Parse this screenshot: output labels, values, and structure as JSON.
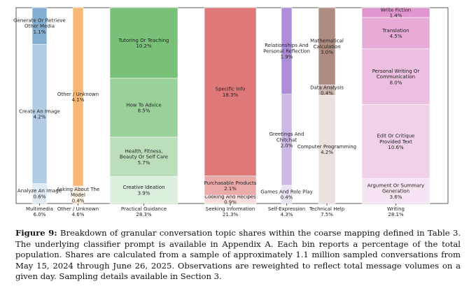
{
  "caption": {
    "label": "Figure 9:",
    "text": "Breakdown of granular conversation topic shares within the coarse mapping defined in Table 3. The underlying classifier prompt is available in Appendix A. Each bin reports a percentage of the total population. Shares are calculated from a sample of approximately 1.1 million sampled conversations from May 15, 2024 through June 26, 2025. Observations are reweighted to reflect total message volumes on a given day. Sampling details available in Section 3."
  },
  "chart_data": {
    "type": "bar",
    "subtype": "stacked-normalized",
    "title": "",
    "xlabel": "",
    "ylabel": "",
    "ylim": [
      0,
      1
    ],
    "categories": [
      {
        "name": "Multimedia",
        "total": "6.0%",
        "color": "#4f8dbf",
        "segments": [
          {
            "label": "Analyze An Image",
            "value": 0.6
          },
          {
            "label": "Create An Image",
            "value": 4.2
          },
          {
            "label": "Generate Or Retrieve Other Media",
            "value": 1.1
          }
        ]
      },
      {
        "name": "Other / Unknown",
        "total": "4.6%",
        "color": "#f39a3d",
        "segments": [
          {
            "label": "Asking About The Model",
            "value": 0.4
          },
          {
            "label": "Other / Unknown",
            "value": 4.1
          }
        ]
      },
      {
        "name": "Practical Guidance",
        "total": "28.3%",
        "color": "#3fa53f",
        "segments": [
          {
            "label": "Creative Ideation",
            "value": 3.9
          },
          {
            "label": "Health, Fitness, Beauty Or Self Care",
            "value": 5.7
          },
          {
            "label": "How To Advice",
            "value": 8.5
          },
          {
            "label": "Tutoring Or Teaching",
            "value": 10.2
          }
        ]
      },
      {
        "name": "Seeking Information",
        "total": "21.3%",
        "color": "#d13f3f",
        "segments": [
          {
            "label": "Cooking And Recipes",
            "value": 0.9
          },
          {
            "label": "Purchasable Products",
            "value": 2.1
          },
          {
            "label": "Specific Info",
            "value": 18.3
          }
        ]
      },
      {
        "name": "Self-Expression",
        "total": "4.3%",
        "color": "#8a5cc4",
        "segments": [
          {
            "label": "Games And Role Play",
            "value": 0.4
          },
          {
            "label": "Greetings And Chitchat",
            "value": 2.0
          },
          {
            "label": "Relationships And Personal Reflection",
            "value": 1.9
          }
        ]
      },
      {
        "name": "Technical Help",
        "total": "7.5%",
        "color": "#8c5a4a",
        "segments": [
          {
            "label": "Computer Programming",
            "value": 4.2
          },
          {
            "label": "Data Analysis",
            "value": 0.4
          },
          {
            "label": "Mathematical Calculation",
            "value": 3.0
          }
        ]
      },
      {
        "name": "Writing",
        "total": "28.1%",
        "color": "#d36bb8",
        "segments": [
          {
            "label": "Argument Or Summary Generation",
            "value": 3.6
          },
          {
            "label": "Edit Or Critique Provided Text",
            "value": 10.6
          },
          {
            "label": "Personal Writing Or Communication",
            "value": 8.0
          },
          {
            "label": "Translation",
            "value": 4.5
          },
          {
            "label": "Write Fiction",
            "value": 1.4
          }
        ]
      }
    ]
  }
}
